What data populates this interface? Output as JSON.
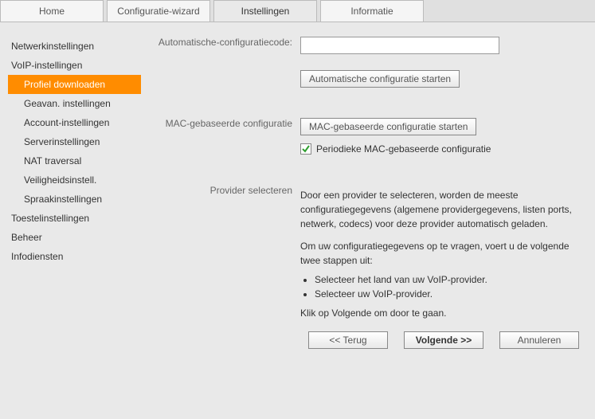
{
  "colors": {
    "accent": "#ff8c00",
    "check": "#2e9e2e",
    "page_bg": "#e9e9e9",
    "outer_bg": "#e0e0e0",
    "border": "#bbbbbb",
    "text": "#333333",
    "muted": "#666666"
  },
  "tabs": {
    "items": [
      {
        "label": "Home",
        "active": false
      },
      {
        "label": "Configuratie-wizard",
        "active": false
      },
      {
        "label": "Instellingen",
        "active": true
      },
      {
        "label": "Informatie",
        "active": false
      }
    ]
  },
  "sidebar": {
    "items": [
      {
        "label": "Netwerkinstellingen",
        "level": 0,
        "active": false
      },
      {
        "label": "VoIP-instellingen",
        "level": 0,
        "active": false
      },
      {
        "label": "Profiel downloaden",
        "level": 1,
        "active": true
      },
      {
        "label": "Geavan. instellingen",
        "level": 1,
        "active": false
      },
      {
        "label": "Account-instellingen",
        "level": 1,
        "active": false
      },
      {
        "label": "Serverinstellingen",
        "level": 1,
        "active": false
      },
      {
        "label": "NAT traversal",
        "level": 1,
        "active": false
      },
      {
        "label": "Veiligheidsinstell.",
        "level": 1,
        "active": false
      },
      {
        "label": "Spraakinstellingen",
        "level": 1,
        "active": false
      },
      {
        "label": "Toestelinstellingen",
        "level": 0,
        "active": false
      },
      {
        "label": "Beheer",
        "level": 0,
        "active": false
      },
      {
        "label": "Infodiensten",
        "level": 0,
        "active": false
      }
    ]
  },
  "form": {
    "auto_code_label": "Automatische-configuratiecode:",
    "auto_code_value": "",
    "auto_start_btn": "Automatische configuratie starten",
    "mac_label": "MAC-gebaseerde configuratie",
    "mac_btn": "MAC-gebaseerde configuratie starten",
    "mac_checkbox_checked": true,
    "mac_checkbox_label": "Periodieke MAC-gebaseerde configuratie",
    "provider_label": "Provider selecteren",
    "provider_para1": "Door een provider te selecteren, worden de meeste configuratiegegevens (algemene providergegevens, listen ports, netwerk, codecs) voor deze provider automatisch geladen.",
    "provider_para2": "Om uw configuratiegegevens op te vragen, voert u de volgende twee stappen uit:",
    "provider_bullets": [
      "Selecteer het land van uw VoIP-provider.",
      "Selecteer uw VoIP-provider."
    ],
    "provider_para3": "Klik op Volgende om door te gaan."
  },
  "nav": {
    "back": "<< Terug",
    "next": "Volgende >>",
    "cancel": "Annuleren"
  }
}
